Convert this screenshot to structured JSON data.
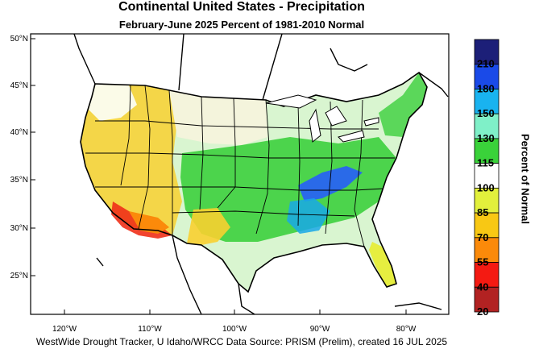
{
  "title": "Continental United States - Precipitation",
  "subtitle": "February-June 2025  Percent of 1981-2010 Normal",
  "credit": "WestWide Drought Tracker, U Idaho/WRCC Data Source: PRISM (Prelim), created 16 JUL 2025",
  "map": {
    "lat_labels": [
      "50°N",
      "45°N",
      "40°N",
      "35°N",
      "30°N",
      "25°N"
    ],
    "lon_labels": [
      "120°W",
      "110°W",
      "100°W",
      "90°W",
      "80°W"
    ]
  },
  "legend": {
    "title": "Percent of Normal",
    "values": [
      "210",
      "180",
      "150",
      "130",
      "115",
      "100",
      "85",
      "70",
      "55",
      "40",
      "20"
    ],
    "colors": [
      "#1c1f78",
      "#1a4ae8",
      "#19b3f0",
      "#7ff0c8",
      "#3ad23a",
      "#ffffff",
      "#e2f03c",
      "#f8c814",
      "#fb8a0a",
      "#f41a12",
      "#b22222"
    ]
  },
  "colors": {
    "border": "#000000",
    "background": "#ffffff"
  }
}
